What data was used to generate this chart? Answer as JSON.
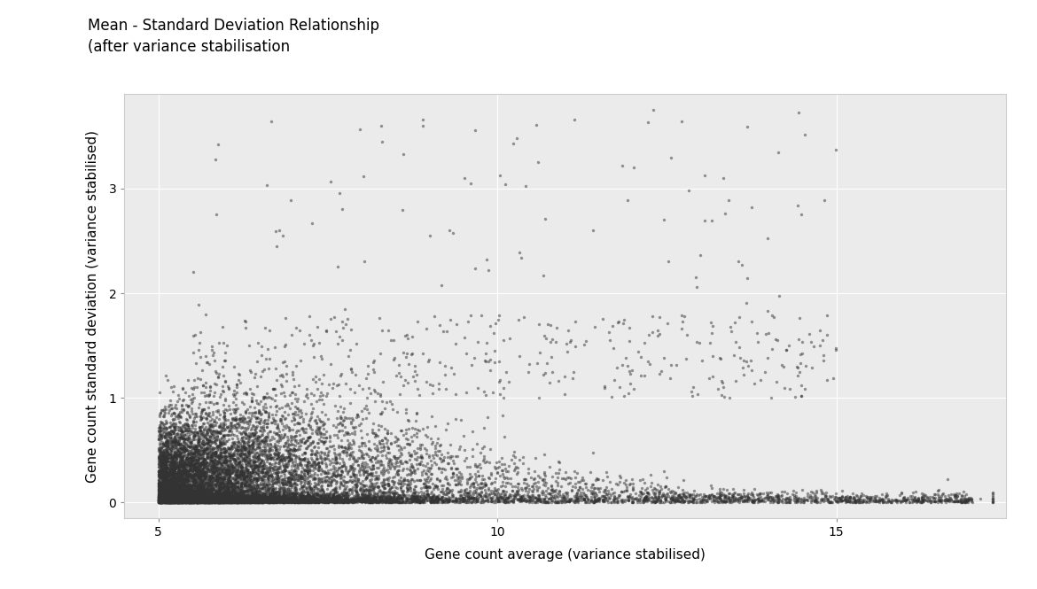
{
  "title": "Mean - Standard Deviation Relationship\n(after variance stabilisation",
  "xlabel": "Gene count average (variance stabilised)",
  "ylabel": "Gene count standard deviation (variance stabilised)",
  "xlim": [
    4.5,
    17.5
  ],
  "ylim": [
    -0.15,
    3.9
  ],
  "xticks": [
    5,
    10,
    15
  ],
  "yticks": [
    0,
    1,
    2,
    3
  ],
  "bg_color": "#EBEBEB",
  "point_color": "#333333",
  "point_alpha": 0.5,
  "point_size": 6,
  "n_points": 15000,
  "seed": 99
}
